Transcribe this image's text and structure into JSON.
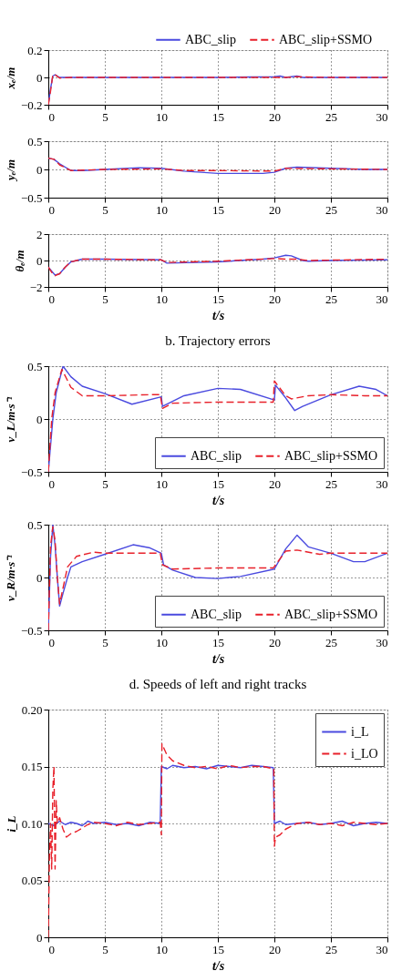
{
  "chart_data": [
    {
      "type": "line",
      "ylabel": "xₑ/m",
      "xlim": [
        0,
        30
      ],
      "xticks": [
        0,
        5,
        10,
        15,
        20,
        25,
        30
      ],
      "ylim": [
        -0.2,
        0.2
      ],
      "yticks": [
        -0.2,
        0,
        0.2
      ],
      "grid": true,
      "legend": "top",
      "series": [
        {
          "name": "ABC_slip",
          "color": "#4a4adf",
          "line_style": "solid",
          "x": [
            0,
            0.2,
            0.4,
            0.6,
            1,
            2,
            5,
            10,
            15,
            20,
            20.5,
            21,
            22,
            22.5,
            25,
            30
          ],
          "values": [
            -0.2,
            -0.08,
            0.01,
            0.02,
            0,
            0,
            0,
            0,
            0,
            0.005,
            0.01,
            0,
            0.01,
            0,
            0,
            0
          ]
        },
        {
          "name": "ABC_slip+SSMO",
          "color": "#e8202a",
          "line_style": "dashed",
          "x": [
            0,
            0.2,
            0.4,
            0.6,
            1,
            2,
            5,
            10,
            15,
            20,
            21,
            22,
            25,
            30
          ],
          "values": [
            -0.2,
            -0.1,
            0.02,
            0.02,
            -0.005,
            0,
            0,
            0,
            0,
            0,
            0,
            0.005,
            0,
            0
          ]
        }
      ]
    },
    {
      "type": "line",
      "ylabel": "yₑ/m",
      "xlim": [
        0,
        30
      ],
      "xticks": [
        0,
        5,
        10,
        15,
        20,
        25,
        30
      ],
      "ylim": [
        -0.5,
        0.5
      ],
      "yticks": [
        -0.5,
        0,
        0.5
      ],
      "grid": true,
      "series": [
        {
          "color": "#4a4adf",
          "line_style": "solid",
          "x": [
            0,
            0.5,
            1,
            2,
            3,
            5,
            8,
            10,
            12,
            15,
            19,
            20,
            21,
            22,
            25,
            28,
            30
          ],
          "values": [
            0.2,
            0.18,
            0.1,
            -0.02,
            -0.02,
            0,
            0.03,
            0.02,
            -0.03,
            -0.07,
            -0.07,
            -0.05,
            0.02,
            0.04,
            0.02,
            0,
            0
          ]
        },
        {
          "color": "#e8202a",
          "line_style": "dashed",
          "x": [
            0,
            0.5,
            1,
            2,
            5,
            10,
            12,
            15,
            20,
            21,
            25,
            30
          ],
          "values": [
            0.2,
            0.18,
            0.08,
            -0.02,
            0,
            0.01,
            -0.02,
            -0.02,
            -0.03,
            0.02,
            0.01,
            0
          ]
        }
      ]
    },
    {
      "type": "line",
      "ylabel": "θₑ/m",
      "xlabel": "t/s",
      "annotations": [
        "b. Trajectory errors"
      ],
      "xlim": [
        0,
        30
      ],
      "xticks": [
        0,
        5,
        10,
        15,
        20,
        25,
        30
      ],
      "ylim": [
        -2,
        2
      ],
      "yticks": [
        -2,
        0,
        2
      ],
      "grid": true,
      "series": [
        {
          "color": "#4a4adf",
          "line_style": "solid",
          "x": [
            0,
            0.3,
            0.6,
            1,
            1.5,
            2,
            3,
            5,
            10,
            10.5,
            15,
            19,
            20,
            21,
            21.5,
            22.5,
            23,
            25,
            30
          ],
          "values": [
            -0.5,
            -0.8,
            -1.1,
            -1.0,
            -0.5,
            -0.1,
            0.1,
            0.1,
            0.05,
            -0.2,
            -0.1,
            0.1,
            0.2,
            0.4,
            0.35,
            0,
            -0.05,
            0,
            0.05
          ]
        },
        {
          "color": "#e8202a",
          "line_style": "dashed",
          "x": [
            0,
            0.3,
            0.6,
            1,
            1.5,
            2,
            3,
            5,
            10,
            10.5,
            15,
            20,
            21,
            22,
            23,
            30
          ],
          "values": [
            -0.5,
            -0.9,
            -1.15,
            -1.0,
            -0.5,
            -0.1,
            0.1,
            0.1,
            0.05,
            -0.15,
            -0.05,
            0.15,
            0.1,
            0.1,
            0,
            0.1
          ]
        }
      ]
    },
    {
      "type": "line",
      "ylabel": "v_L/m·s⁻¹",
      "xlabel": "t/s",
      "xlim": [
        0,
        30
      ],
      "xticks": [
        0,
        5,
        10,
        15,
        20,
        25,
        30
      ],
      "ylim": [
        -0.5,
        0.5
      ],
      "yticks": [
        -0.5,
        0,
        0.5
      ],
      "grid": true,
      "legend": "bottom right",
      "series": [
        {
          "name": "ABC_slip",
          "color": "#4a4adf",
          "line_style": "solid",
          "x": [
            0,
            0.4,
            0.7,
            1.3,
            2,
            3,
            5,
            7.4,
            10,
            10.1,
            12,
            15,
            17,
            20,
            20.1,
            21,
            21.8,
            22.5,
            25,
            27.5,
            29,
            30
          ],
          "values": [
            -0.5,
            0,
            0.25,
            0.5,
            0.4,
            0.31,
            0.24,
            0.14,
            0.21,
            0.12,
            0.22,
            0.29,
            0.28,
            0.18,
            0.32,
            0.2,
            0.08,
            0.12,
            0.23,
            0.31,
            0.28,
            0.22
          ]
        },
        {
          "name": "ABC_slip+SSMO",
          "color": "#e8202a",
          "line_style": "dashed",
          "x": [
            0,
            0.3,
            0.6,
            1.2,
            2,
            3,
            5,
            9,
            9.9,
            10.1,
            11,
            15,
            19.9,
            20,
            21,
            21.5,
            23,
            25,
            28,
            30
          ],
          "values": [
            -0.5,
            0,
            0.25,
            0.47,
            0.3,
            0.22,
            0.22,
            0.23,
            0.23,
            0.1,
            0.15,
            0.16,
            0.16,
            0.36,
            0.22,
            0.19,
            0.22,
            0.23,
            0.22,
            0.22
          ]
        }
      ]
    },
    {
      "type": "line",
      "ylabel": "v_R/m·s⁻¹",
      "xlabel": "t/s",
      "annotations": [
        "d. Speeds of left and right tracks"
      ],
      "xlim": [
        0,
        30
      ],
      "xticks": [
        0,
        5,
        10,
        15,
        20,
        25,
        30
      ],
      "ylim": [
        -0.5,
        0.5
      ],
      "yticks": [
        -0.5,
        0,
        0.5
      ],
      "grid": true,
      "legend": "bottom right",
      "series": [
        {
          "name": "ABC_slip",
          "color": "#4a4adf",
          "line_style": "solid",
          "x": [
            0,
            0.2,
            0.4,
            0.6,
            0.8,
            1.0,
            1.3,
            1.7,
            2,
            3,
            5,
            7.5,
            9,
            10,
            10.2,
            11,
            13,
            15,
            17,
            20,
            21,
            22,
            23,
            25,
            27,
            28,
            30
          ],
          "values": [
            -0.5,
            0.2,
            0.5,
            0.3,
            0,
            -0.27,
            -0.15,
            0,
            0.1,
            0.15,
            0.22,
            0.31,
            0.28,
            0.23,
            0.12,
            0.07,
            0,
            -0.01,
            0.01,
            0.08,
            0.27,
            0.4,
            0.29,
            0.23,
            0.15,
            0.15,
            0.23
          ]
        },
        {
          "name": "ABC_slip+SSMO",
          "color": "#e8202a",
          "line_style": "dashed",
          "x": [
            0,
            0.2,
            0.4,
            0.6,
            0.8,
            1.0,
            1.3,
            1.7,
            2.5,
            4,
            5,
            9.9,
            10.1,
            11,
            15,
            19.9,
            21,
            22,
            24,
            25,
            30
          ],
          "values": [
            -0.5,
            0.3,
            0.48,
            0.35,
            0,
            -0.25,
            -0.1,
            0.1,
            0.2,
            0.24,
            0.23,
            0.23,
            0.12,
            0.08,
            0.09,
            0.09,
            0.25,
            0.26,
            0.22,
            0.23,
            0.23
          ]
        }
      ]
    },
    {
      "type": "line",
      "ylabel": "i_L",
      "xlabel": "t/s",
      "xlim": [
        0,
        30
      ],
      "xticks": [
        0,
        5,
        10,
        15,
        20,
        25,
        30
      ],
      "ylim": [
        0,
        0.2
      ],
      "yticks": [
        0,
        {
          "value": 0.05,
          "label": "0.05"
        },
        {
          "value": 0.1,
          "label": "0.10"
        },
        {
          "value": 0.15,
          "label": "0.15"
        },
        {
          "value": 0.2,
          "label": "0.20"
        }
      ],
      "grid": true,
      "legend": "top right",
      "series": [
        {
          "name": "i_L",
          "color": "#4a4adf",
          "line_style": "solid",
          "x": [
            0,
            0.5,
            1,
            1.5,
            2,
            2.5,
            3,
            3.5,
            4,
            5,
            6,
            7,
            8,
            9,
            9.9,
            10,
            10.5,
            11,
            12,
            13,
            14,
            15,
            16,
            17,
            18,
            19,
            19.9,
            20,
            20.5,
            21,
            22,
            23,
            24,
            25,
            26,
            27,
            28,
            29,
            30
          ],
          "values": [
            0.1,
            0.098,
            0.102,
            0.099,
            0.101,
            0.1,
            0.098,
            0.102,
            0.1,
            0.101,
            0.099,
            0.1,
            0.098,
            0.101,
            0.1,
            0.15,
            0.148,
            0.151,
            0.149,
            0.15,
            0.148,
            0.151,
            0.15,
            0.149,
            0.151,
            0.15,
            0.149,
            0.1,
            0.102,
            0.099,
            0.1,
            0.101,
            0.099,
            0.1,
            0.102,
            0.098,
            0.1,
            0.101,
            0.1
          ]
        },
        {
          "name": "i_LO",
          "color": "#e8202a",
          "line_style": "dashed",
          "x": [
            0,
            0.1,
            0.2,
            0.3,
            0.4,
            0.5,
            0.6,
            0.7,
            0.8,
            1,
            1.3,
            1.6,
            2,
            2.5,
            3,
            3.5,
            4,
            5,
            6,
            7,
            8,
            9,
            9.9,
            10,
            10.05,
            10.5,
            11,
            12,
            13,
            14,
            15,
            16,
            17,
            18,
            19,
            19.95,
            20,
            20.1,
            20.5,
            21,
            22,
            23,
            24,
            25,
            26,
            27,
            28,
            29,
            30
          ],
          "values": [
            0,
            0.07,
            0.1,
            0.06,
            0.13,
            0.15,
            0.06,
            0.12,
            0.1,
            0.105,
            0.095,
            0.088,
            0.091,
            0.093,
            0.096,
            0.099,
            0.101,
            0.1,
            0.098,
            0.101,
            0.099,
            0.1,
            0.101,
            0.09,
            0.17,
            0.16,
            0.155,
            0.151,
            0.149,
            0.15,
            0.148,
            0.151,
            0.149,
            0.15,
            0.15,
            0.148,
            0.08,
            0.088,
            0.09,
            0.095,
            0.1,
            0.101,
            0.099,
            0.1,
            0.098,
            0.101,
            0.1,
            0.099,
            0.1
          ]
        }
      ]
    }
  ]
}
